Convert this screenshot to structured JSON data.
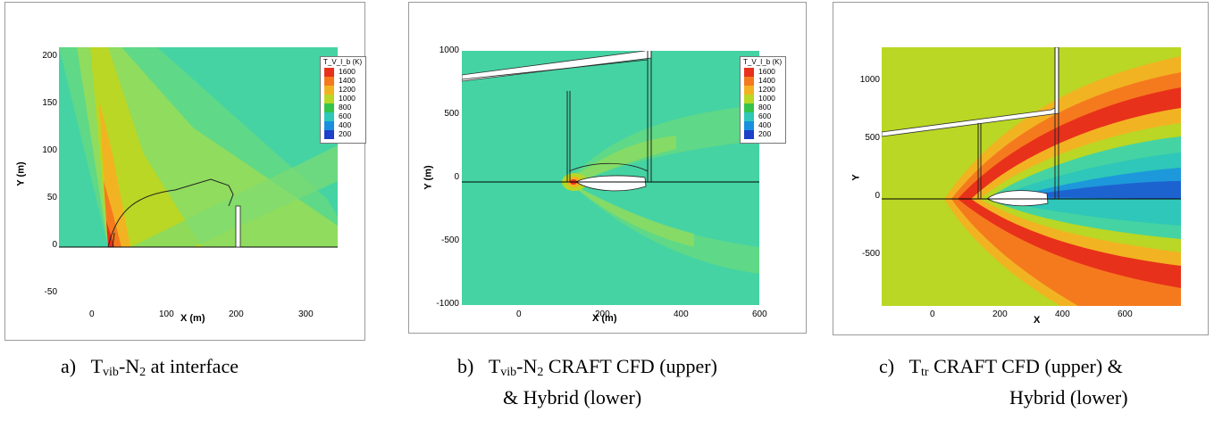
{
  "figure": {
    "panels": [
      {
        "id": "a",
        "legend": {
          "title": "T_V_I_b (K)",
          "entries": [
            {
              "label": "1600",
              "color": "#e8311a"
            },
            {
              "label": "1400",
              "color": "#f57a1e"
            },
            {
              "label": "1200",
              "color": "#f2b322"
            },
            {
              "label": "1000",
              "color": "#b9d724"
            },
            {
              "label": "800",
              "color": "#35c44a"
            },
            {
              "label": "600",
              "color": "#2ec7b9"
            },
            {
              "label": "400",
              "color": "#1a8fe0"
            },
            {
              "label": "200",
              "color": "#1e3fc8"
            }
          ]
        },
        "x_ticks": [
          "0",
          "100",
          "200",
          "300"
        ],
        "y_ticks": [
          "200",
          "150",
          "100",
          "50",
          "0",
          "-50"
        ],
        "xlabel": "X (m)",
        "ylabel": "Y (m)",
        "caption": {
          "prefix": "a)",
          "symbol": "T",
          "sub": "vib",
          "text": "-N",
          "sub2": "2",
          "rest": " at interface"
        }
      },
      {
        "id": "b",
        "legend": {
          "title": "T_V_I_b (K)",
          "entries": [
            {
              "label": "1600",
              "color": "#e8311a"
            },
            {
              "label": "1400",
              "color": "#f57a1e"
            },
            {
              "label": "1200",
              "color": "#f2b322"
            },
            {
              "label": "1000",
              "color": "#b9d724"
            },
            {
              "label": "800",
              "color": "#35c44a"
            },
            {
              "label": "600",
              "color": "#2ec7b9"
            },
            {
              "label": "400",
              "color": "#1a8fe0"
            },
            {
              "label": "200",
              "color": "#1e3fc8"
            }
          ]
        },
        "x_ticks": [
          "0",
          "200",
          "400",
          "600"
        ],
        "y_ticks": [
          "1000",
          "500",
          "0",
          "-500",
          "-1000"
        ],
        "xlabel": "X (m)",
        "ylabel": "Y (m)",
        "caption": {
          "prefix": "b)",
          "symbol": "T",
          "sub": "vib",
          "text": "-N",
          "sub2": "2",
          "rest": " CRAFT CFD (upper)",
          "line2": "& Hybrid (lower)"
        }
      },
      {
        "id": "c",
        "x_ticks": [
          "0",
          "200",
          "400",
          "600"
        ],
        "y_ticks": [
          "1000",
          "500",
          "0",
          "-500"
        ],
        "xlabel": "X",
        "ylabel": "Y",
        "caption": {
          "prefix": "c)",
          "symbol": "T",
          "sub": "tr",
          "rest": " CRAFT CFD (upper) &",
          "line2": "Hybrid (lower)"
        }
      }
    ],
    "colors": {
      "background_field": "#3fd0a0",
      "panel_c_field": "#b9d724",
      "hot": "#e8311a",
      "warm": "#f2b322"
    }
  }
}
